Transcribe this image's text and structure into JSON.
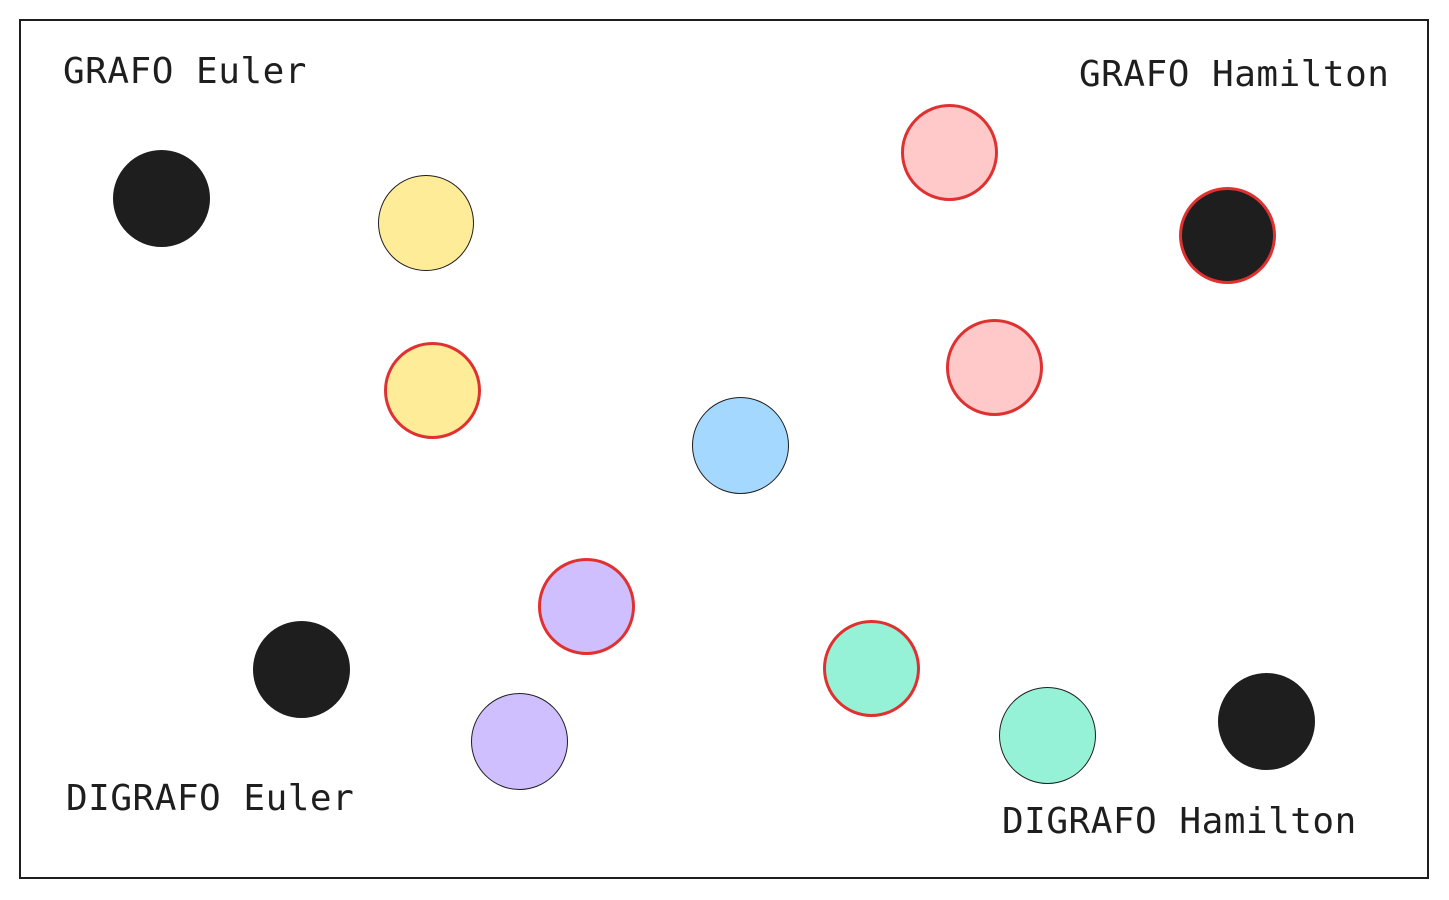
{
  "labels": {
    "grafo_euler": "GRAFO Euler",
    "grafo_hamilton": "GRAFO Hamilton",
    "digrafo_euler": "DIGRAFO Euler",
    "digrafo_hamilton": "DIGRAFO Hamilton"
  },
  "colors": {
    "black": "#1e1e1e",
    "yellow": "#ffec99",
    "pink": "#ffc9c9",
    "blue": "#a5d8ff",
    "purple": "#d0bfff",
    "green": "#96f2d7",
    "red_stroke": "#e03131",
    "dark_stroke": "#1e1e1e"
  },
  "nodes": [
    {
      "name": "node-black-top-left",
      "fill": "black",
      "stroke": "dark_stroke"
    },
    {
      "name": "node-yellow-upper",
      "fill": "yellow",
      "stroke": "dark_stroke"
    },
    {
      "name": "node-yellow-lower",
      "fill": "yellow",
      "stroke": "red_stroke"
    },
    {
      "name": "node-pink-upper",
      "fill": "pink",
      "stroke": "red_stroke"
    },
    {
      "name": "node-black-top-right",
      "fill": "black",
      "stroke": "red_stroke"
    },
    {
      "name": "node-pink-lower",
      "fill": "pink",
      "stroke": "red_stroke"
    },
    {
      "name": "node-blue-center",
      "fill": "blue",
      "stroke": "dark_stroke"
    },
    {
      "name": "node-purple-upper",
      "fill": "purple",
      "stroke": "red_stroke"
    },
    {
      "name": "node-black-bottom-left",
      "fill": "black",
      "stroke": "dark_stroke"
    },
    {
      "name": "node-purple-lower",
      "fill": "purple",
      "stroke": "dark_stroke"
    },
    {
      "name": "node-green-upper",
      "fill": "green",
      "stroke": "red_stroke"
    },
    {
      "name": "node-green-lower",
      "fill": "green",
      "stroke": "dark_stroke"
    },
    {
      "name": "node-black-bottom-right",
      "fill": "black",
      "stroke": "dark_stroke"
    }
  ]
}
